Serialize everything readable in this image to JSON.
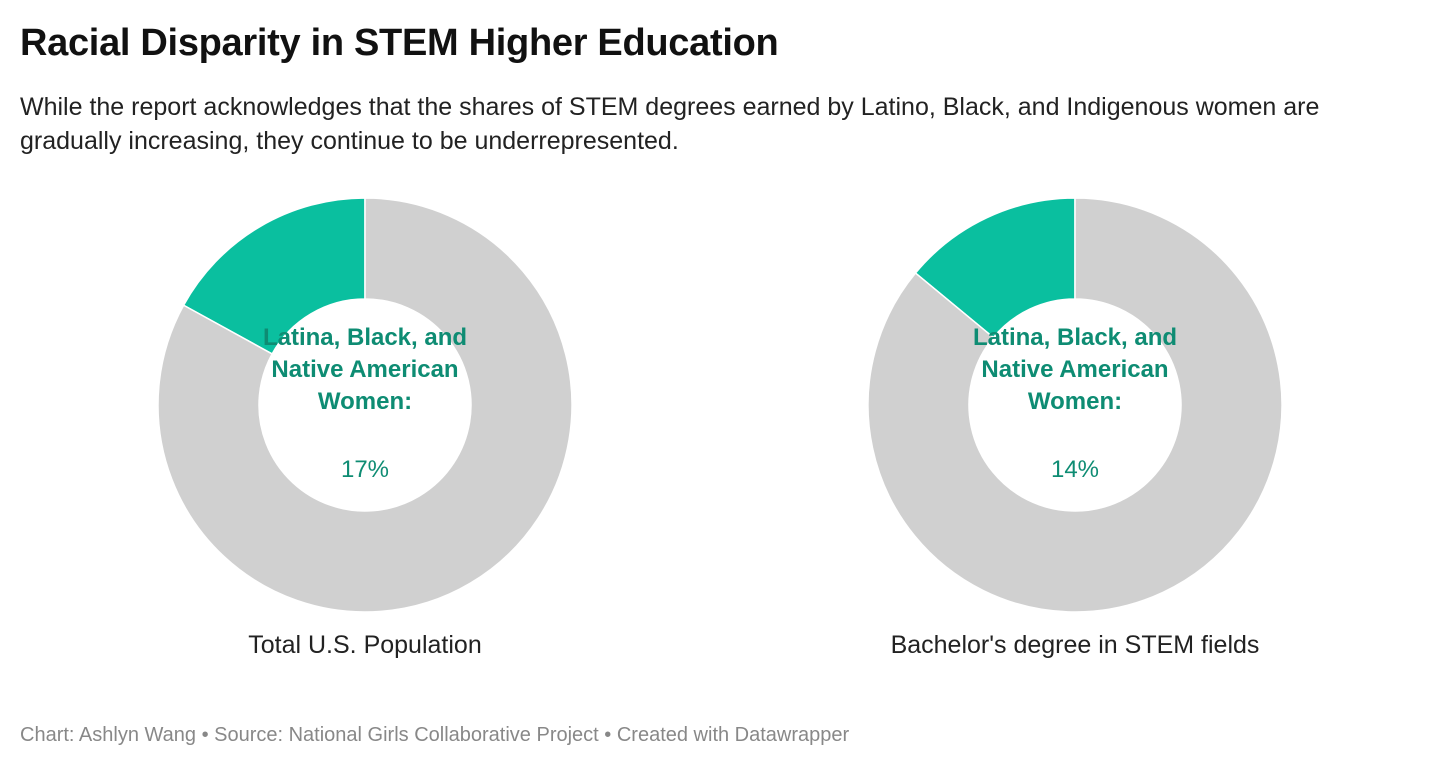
{
  "header": {
    "title": "Racial Disparity in STEM Higher Education",
    "subtitle": "While the report acknowledges that the shares of STEM degrees earned by Latino, Black, and Indigenous women are gradually increasing, they continue to be underrepresented."
  },
  "colors": {
    "highlight": "#0abf9f",
    "rest": "#d0d0d0",
    "label": "#0e8c73",
    "separator": "#ffffff"
  },
  "chart_data": [
    {
      "type": "pie",
      "title": "Total U.S. Population",
      "slices": [
        {
          "label": "Latina, Black, and Native American Women:",
          "value": 17
        },
        {
          "label": "",
          "value": 83
        }
      ],
      "center_label": "Latina, Black, and Native American Women:",
      "center_value": "17%"
    },
    {
      "type": "pie",
      "title": "Bachelor's degree in STEM fields",
      "slices": [
        {
          "label": "Latina, Black, and Native American Women:",
          "value": 14
        },
        {
          "label": "",
          "value": 86
        }
      ],
      "center_label": "Latina, Black, and Native American Women:",
      "center_value": "14%"
    }
  ],
  "footer": {
    "text": "Chart: Ashlyn Wang • Source: National Girls Collaborative Project • Created with Datawrapper"
  }
}
